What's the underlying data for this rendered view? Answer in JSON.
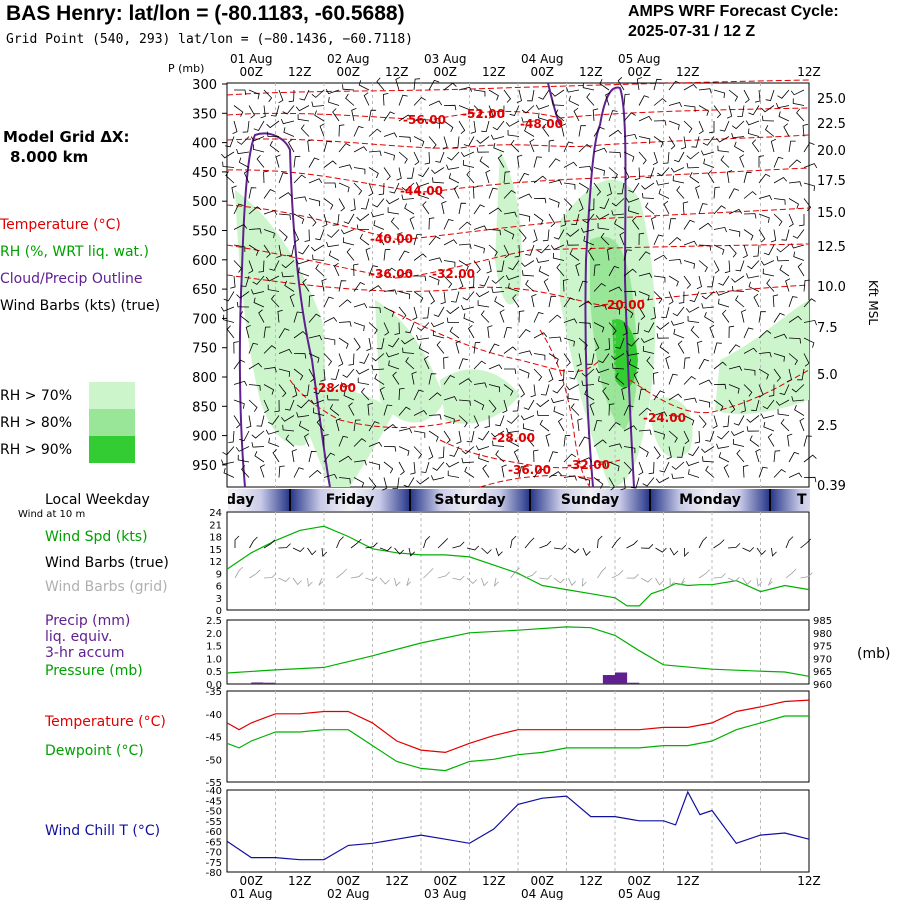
{
  "header": {
    "title": "BAS Henry:  lat/lon = (-80.1183, -60.5688)",
    "grid_point": "Grid Point (540, 293) lat/lon = (−80.1436, −60.7118)",
    "amps_line1": "AMPS WRF Forecast Cycle:",
    "amps_line2": "2025-07-31 / 12  Z"
  },
  "side_labels": {
    "model_grid": "Model Grid ΔX:",
    "model_grid_value": "8.000 km",
    "temperature": "Temperature (°C)",
    "rh": "RH (%, WRT liq. wat.)",
    "cloud": "Cloud/Precip Outline",
    "wind_barbs": "Wind Barbs (kts) (true)",
    "rh70": "RH > 70%",
    "rh80": "RH > 80%",
    "rh90": "RH > 90%",
    "local_weekday": "Local Weekday",
    "wind_at_10m": "Wind at 10 m",
    "wind_spd": "Wind Spd (kts)",
    "wind_barbs_true": "Wind Barbs (true)",
    "wind_barbs_grid": "Wind Barbs (grid)",
    "precip": "Precip (mm)",
    "liq_equiv": "liq. equiv.",
    "accum": "3-hr accum",
    "pressure": "Pressure (mb)",
    "temperature2": "Temperature (°C)",
    "dewpoint": "Dewpoint (°C)",
    "wind_chill": "Wind Chill T (°C)",
    "p_axis_unit": "P (mb)",
    "kft_axis_label": "Kft MSL",
    "mb_unit": "(mb)"
  },
  "colors": {
    "temperature": "#e00000",
    "rh": "#00a000",
    "cloud": "#602090",
    "wind_black": "#000000",
    "wind_grid": "#a0a0a0",
    "precip": "#602090",
    "pressure": "#00b000",
    "dewpoint": "#00b000",
    "wind_chill": "#1010a0",
    "rh70": "#ccf5cc",
    "rh80": "#99e699",
    "rh90": "#33cc33"
  },
  "time_axis": {
    "ticks": [
      "00Z",
      "12Z",
      "00Z",
      "12Z",
      "00Z",
      "12Z",
      "00Z",
      "12Z",
      "00Z",
      "12Z"
    ],
    "dates_top": [
      "01 Aug",
      "02 Aug",
      "03 Aug",
      "04 Aug",
      "05 Aug"
    ],
    "dates_bottom": [
      "01 Aug",
      "02 Aug",
      "03 Aug",
      "04 Aug",
      "05 Aug"
    ],
    "weekdays": [
      "rsday",
      "Friday",
      "Saturday",
      "Sunday",
      "Monday",
      "T"
    ]
  },
  "chart_data": [
    {
      "type": "heatmap",
      "name": "cross-section",
      "y_pressure_ticks": [
        "300",
        "350",
        "400",
        "450",
        "500",
        "550",
        "600",
        "650",
        "700",
        "750",
        "800",
        "850",
        "900",
        "950"
      ],
      "y_height_ticks": [
        "25.0",
        "22.5",
        "20.0",
        "17.5",
        "15.0",
        "12.5",
        "10.0",
        "7.5",
        "5.0",
        "2.5",
        "0.39"
      ],
      "contour_labels": [
        "-56.00",
        "-52.00",
        "-48.00",
        "-44.00",
        "-40.00",
        "-36.00",
        "-32.00",
        "-20.00",
        "-28.00",
        "-24.00",
        "-28.00",
        "-36.00",
        "-32.00"
      ]
    },
    {
      "type": "line",
      "name": "wind speed",
      "y_ticks": [
        "24",
        "21",
        "18",
        "15",
        "12",
        "9",
        "6",
        "3",
        "0"
      ],
      "ylim": [
        0,
        24
      ],
      "x_hours": [
        0,
        6,
        12,
        18,
        21,
        24,
        30,
        36,
        42,
        48,
        54,
        60,
        66,
        72,
        75,
        78,
        84,
        90,
        96,
        99,
        102,
        105,
        108,
        111,
        114,
        117,
        120,
        126,
        132,
        138,
        144
      ],
      "values": [
        10,
        14,
        17,
        19.5,
        20,
        20.5,
        18,
        15,
        14,
        13.5,
        13.5,
        13,
        11,
        9,
        7.5,
        6,
        5,
        4,
        3,
        1,
        1,
        4,
        5,
        6.5,
        6,
        6.2,
        6.2,
        7.2,
        4.5,
        6,
        5
      ]
    },
    {
      "type": "line",
      "name": "precip and pressure",
      "y_ticks_left": [
        "2.5",
        "2.0",
        "1.5",
        "1.0",
        "0.5",
        "0.0"
      ],
      "y_ticks_right": [
        "985",
        "980",
        "975",
        "970",
        "965",
        "960"
      ],
      "precip_bars": [
        {
          "x_hours": [
            6,
            9
          ],
          "mm": 0.06
        },
        {
          "x_hours": [
            9,
            12
          ],
          "mm": 0.05
        },
        {
          "x_hours": [
            93,
            96
          ],
          "mm": 0.35
        },
        {
          "x_hours": [
            96,
            99
          ],
          "mm": 0.45
        },
        {
          "x_hours": [
            99,
            102
          ],
          "mm": 0.05
        }
      ],
      "pressure_x_hours": [
        0,
        12,
        24,
        36,
        48,
        60,
        72,
        84,
        90,
        96,
        102,
        108,
        120,
        132,
        138,
        144
      ],
      "pressure_mb": [
        964.3,
        965.5,
        966.5,
        971,
        976,
        980,
        981,
        982.3,
        982,
        979,
        973,
        967.5,
        965.8,
        965,
        964.7,
        963
      ]
    },
    {
      "type": "line",
      "name": "temperature and dewpoint",
      "y_ticks": [
        "-35",
        "-40",
        "-45",
        "-50",
        "-55"
      ],
      "ylim": [
        -55,
        -35
      ],
      "x_hours": [
        0,
        3,
        6,
        9,
        12,
        18,
        24,
        30,
        36,
        42,
        48,
        54,
        60,
        66,
        72,
        78,
        84,
        90,
        96,
        102,
        108,
        114,
        120,
        126,
        132,
        138,
        144
      ],
      "temperature": [
        -42,
        -43.5,
        -42,
        -41,
        -40,
        -40,
        -39.5,
        -39.5,
        -42,
        -46,
        -48,
        -48.5,
        -46.5,
        -44.8,
        -43.5,
        -43.5,
        -43.5,
        -43.5,
        -43.5,
        -43.5,
        -43,
        -43,
        -42,
        -39.5,
        -38.5,
        -37.3,
        -37
      ],
      "dewpoint": [
        -46.5,
        -47.5,
        -46,
        -45,
        -44,
        -44,
        -43.5,
        -43.5,
        -47,
        -50.5,
        -52,
        -52.5,
        -50.5,
        -50,
        -49,
        -48.5,
        -47.5,
        -47.5,
        -47.5,
        -47.5,
        -47,
        -47,
        -46,
        -43.5,
        -42,
        -40.5,
        -40.5
      ]
    },
    {
      "type": "line",
      "name": "wind chill",
      "y_ticks": [
        "-40",
        "-45",
        "-50",
        "-55",
        "-60",
        "-65",
        "-70",
        "-75",
        "-80"
      ],
      "ylim": [
        -80,
        -40
      ],
      "x_hours": [
        0,
        6,
        12,
        18,
        24,
        30,
        36,
        42,
        48,
        54,
        60,
        66,
        72,
        78,
        84,
        90,
        96,
        102,
        105,
        108,
        111,
        114,
        117,
        120,
        126,
        132,
        138,
        144
      ],
      "values": [
        -65,
        -73,
        -73,
        -74,
        -74,
        -67,
        -66,
        -64,
        -62,
        -64,
        -66,
        -59,
        -47,
        -44,
        -43,
        -53,
        -53,
        -55,
        -55,
        -55,
        -57,
        -41,
        -52,
        -50,
        -66,
        -62,
        -61,
        -64
      ]
    }
  ]
}
